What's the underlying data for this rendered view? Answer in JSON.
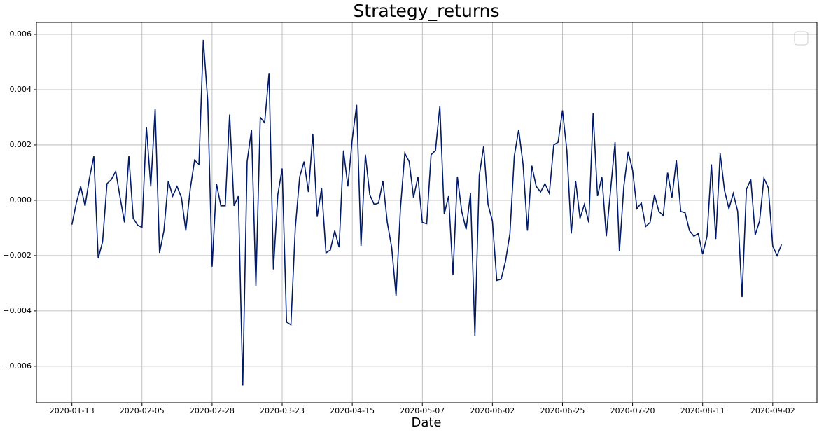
{
  "chart_data": {
    "type": "line",
    "title": "Strategy_returns",
    "x_label": "Date",
    "categories": [
      "2020-01-13",
      null,
      null,
      null,
      null,
      null,
      null,
      null,
      null,
      null,
      null,
      null,
      null,
      null,
      null,
      null,
      "2020-02-05",
      null,
      null,
      null,
      null,
      null,
      null,
      null,
      null,
      null,
      null,
      null,
      null,
      null,
      null,
      null,
      "2020-02-28",
      null,
      null,
      null,
      null,
      null,
      null,
      null,
      null,
      null,
      null,
      null,
      null,
      null,
      null,
      null,
      "2020-03-23",
      null,
      null,
      null,
      null,
      null,
      null,
      null,
      null,
      null,
      null,
      null,
      null,
      null,
      null,
      null,
      "2020-04-15",
      null,
      null,
      null,
      null,
      null,
      null,
      null,
      null,
      null,
      null,
      null,
      null,
      null,
      null,
      null,
      "2020-05-07",
      null,
      null,
      null,
      null,
      null,
      null,
      null,
      null,
      null,
      null,
      null,
      null,
      null,
      null,
      null,
      "2020-06-02",
      null,
      null,
      null,
      null,
      null,
      null,
      null,
      null,
      null,
      null,
      null,
      null,
      null,
      null,
      null,
      "2020-06-25",
      null,
      null,
      null,
      null,
      null,
      null,
      null,
      null,
      null,
      null,
      null,
      null,
      null,
      null,
      null,
      "2020-07-20",
      null,
      null,
      null,
      null,
      null,
      null,
      null,
      null,
      null,
      null,
      null,
      null,
      null,
      null,
      null,
      "2020-08-11",
      null,
      null,
      null,
      null,
      null,
      null,
      null,
      null,
      null,
      null,
      null,
      null,
      null,
      null,
      null,
      "2020-09-02",
      null,
      null
    ],
    "values": [
      -0.00088,
      -0.0001,
      0.0005,
      -0.0002,
      0.0008,
      0.0016,
      -0.0021,
      -0.0015,
      0.0006,
      0.00075,
      0.00105,
      0.0001,
      -0.0008,
      0.0016,
      -0.00065,
      -0.0009,
      -0.00098,
      0.00265,
      0.0005,
      0.0033,
      -0.0019,
      -0.0011,
      0.0007,
      0.00015,
      0.0005,
      0.0001,
      -0.0011,
      0.0004,
      0.00145,
      0.0013,
      0.0058,
      0.0036,
      -0.0024,
      0.0006,
      -0.0002,
      -0.0002,
      0.0031,
      -0.0002,
      0.00015,
      -0.0067,
      0.0014,
      0.00255,
      -0.0031,
      0.003,
      0.0028,
      0.0046,
      -0.0025,
      0.0002,
      0.00115,
      -0.0044,
      -0.0045,
      -0.001,
      0.00085,
      0.0014,
      0.0003,
      0.0024,
      -0.0006,
      0.00045,
      -0.0019,
      -0.0018,
      -0.0011,
      -0.0017,
      0.0018,
      0.0005,
      0.0022,
      0.00345,
      -0.00165,
      0.00165,
      0.0002,
      -0.00015,
      -0.0001,
      0.0007,
      -0.0008,
      -0.0017,
      -0.00345,
      -0.0003,
      0.0017,
      0.0014,
      0.0001,
      0.00085,
      -0.0008,
      -0.00085,
      0.00165,
      0.0018,
      0.0034,
      -0.0005,
      0.00015,
      -0.0027,
      0.00085,
      -0.0004,
      -0.00105,
      0.00025,
      -0.0049,
      0.0009,
      0.00195,
      -0.00015,
      -0.00075,
      -0.0029,
      -0.00285,
      -0.0022,
      -0.0012,
      0.0016,
      0.00255,
      0.0013,
      -0.0011,
      0.00125,
      0.0005,
      0.0003,
      0.0006,
      0.00025,
      0.002,
      0.0021,
      0.00325,
      0.0018,
      -0.0012,
      0.0007,
      -0.00065,
      -0.00015,
      -0.0008,
      0.00315,
      0.00015,
      0.00085,
      -0.0013,
      0.0004,
      0.0021,
      -0.00185,
      0.0005,
      0.00175,
      0.0011,
      -0.0003,
      -0.0001,
      -0.00095,
      -0.0008,
      0.0002,
      -0.0004,
      -0.00055,
      0.001,
      0.0001,
      0.00145,
      -0.0004,
      -0.00045,
      -0.0011,
      -0.0013,
      -0.0012,
      -0.00195,
      -0.0013,
      0.0013,
      -0.0014,
      0.0017,
      0.00035,
      -0.0003,
      0.00025,
      -0.0004,
      -0.0035,
      0.0004,
      0.00075,
      -0.00125,
      -0.00075,
      0.0008,
      0.00045,
      -0.00165,
      -0.002,
      -0.0016
    ],
    "color": "#001a66",
    "ylim": [
      -0.00732,
      0.00643
    ],
    "yticks": [
      {
        "value": -0.006,
        "label": "−0.006"
      },
      {
        "value": -0.004,
        "label": "−0.004"
      },
      {
        "value": -0.002,
        "label": "−0.002"
      },
      {
        "value": 0,
        "label": "0.000"
      },
      {
        "value": 0.002,
        "label": "0.002"
      },
      {
        "value": 0.004,
        "label": "0.004"
      },
      {
        "value": 0.006,
        "label": "0.006"
      }
    ],
    "grid": true
  }
}
